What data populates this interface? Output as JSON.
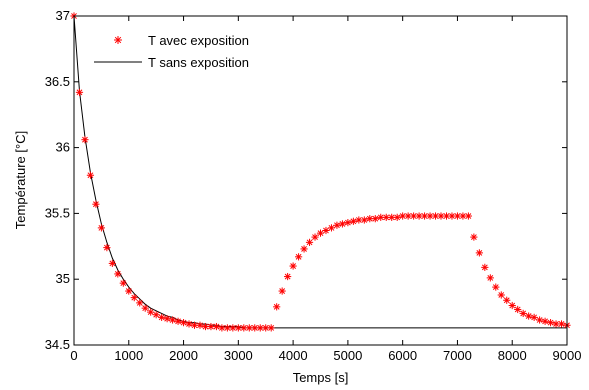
{
  "chart_data": {
    "type": "line",
    "title": "",
    "xlabel": "Temps [s]",
    "ylabel": "Température [°C]",
    "xlim": [
      0,
      9000
    ],
    "ylim": [
      34.5,
      37
    ],
    "xticks": [
      0,
      1000,
      2000,
      3000,
      4000,
      5000,
      6000,
      7000,
      8000,
      9000
    ],
    "yticks": [
      34.5,
      35,
      35.5,
      36,
      36.5,
      37
    ],
    "xtick_labels": [
      "0",
      "1000",
      "2000",
      "3000",
      "4000",
      "5000",
      "6000",
      "7000",
      "8000",
      "9000"
    ],
    "ytick_labels": [
      "34.5",
      "35",
      "35.5",
      "36",
      "36.5",
      "37"
    ],
    "grid": false,
    "legend_position": "top-left",
    "series": [
      {
        "name": "T avec exposition",
        "style": "markers",
        "marker": "asterisk",
        "color": "#ff0000",
        "x": [
          0,
          100,
          200,
          300,
          400,
          500,
          600,
          700,
          800,
          900,
          1000,
          1100,
          1200,
          1300,
          1400,
          1500,
          1600,
          1700,
          1800,
          1900,
          2000,
          2100,
          2200,
          2300,
          2400,
          2500,
          2600,
          2700,
          2800,
          2900,
          3000,
          3100,
          3200,
          3300,
          3400,
          3500,
          3600,
          3700,
          3800,
          3900,
          4000,
          4100,
          4200,
          4300,
          4400,
          4500,
          4600,
          4700,
          4800,
          4900,
          5000,
          5100,
          5200,
          5300,
          5400,
          5500,
          5600,
          5700,
          5800,
          5900,
          6000,
          6100,
          6200,
          6300,
          6400,
          6500,
          6600,
          6700,
          6800,
          6900,
          7000,
          7100,
          7200,
          7300,
          7400,
          7500,
          7600,
          7700,
          7800,
          7900,
          8000,
          8100,
          8200,
          8300,
          8400,
          8500,
          8600,
          8700,
          8800,
          8900,
          9000
        ],
        "y": [
          37.0,
          36.42,
          36.06,
          35.79,
          35.57,
          35.39,
          35.24,
          35.12,
          35.04,
          34.97,
          34.91,
          34.86,
          34.82,
          34.78,
          34.75,
          34.73,
          34.71,
          34.7,
          34.69,
          34.68,
          34.67,
          34.66,
          34.65,
          34.65,
          34.64,
          34.64,
          34.64,
          34.63,
          34.63,
          34.63,
          34.63,
          34.63,
          34.63,
          34.63,
          34.63,
          34.63,
          34.63,
          34.79,
          34.91,
          35.02,
          35.1,
          35.17,
          35.23,
          35.28,
          35.32,
          35.35,
          35.37,
          35.39,
          35.41,
          35.42,
          35.43,
          35.44,
          35.45,
          35.45,
          35.46,
          35.46,
          35.47,
          35.47,
          35.47,
          35.47,
          35.48,
          35.48,
          35.48,
          35.48,
          35.48,
          35.48,
          35.48,
          35.48,
          35.48,
          35.48,
          35.48,
          35.48,
          35.48,
          35.32,
          35.2,
          35.09,
          35.01,
          34.94,
          34.88,
          34.84,
          34.8,
          34.77,
          34.74,
          34.72,
          34.71,
          34.69,
          34.68,
          34.67,
          34.66,
          34.66,
          34.65
        ]
      },
      {
        "name": "T sans exposition",
        "style": "line",
        "color": "#000000",
        "x": [
          0,
          100,
          200,
          300,
          400,
          500,
          600,
          700,
          800,
          900,
          1000,
          1100,
          1200,
          1300,
          1400,
          1500,
          1600,
          1700,
          1800,
          1900,
          2000,
          2100,
          2200,
          2300,
          2400,
          2500,
          2600,
          2700,
          2800,
          2900,
          3000,
          3100,
          3200,
          3300,
          3400,
          3500,
          3600,
          3700,
          4000,
          5000,
          6000,
          7000,
          8000,
          9000
        ],
        "y": [
          37.0,
          36.43,
          36.08,
          35.81,
          35.6,
          35.42,
          35.28,
          35.16,
          35.07,
          35.0,
          34.94,
          34.89,
          34.85,
          34.81,
          34.78,
          34.76,
          34.74,
          34.72,
          34.71,
          34.69,
          34.68,
          34.67,
          34.67,
          34.66,
          34.66,
          34.65,
          34.65,
          34.64,
          34.64,
          34.64,
          34.64,
          34.63,
          34.63,
          34.63,
          34.63,
          34.63,
          34.63,
          34.63,
          34.63,
          34.63,
          34.63,
          34.63,
          34.63,
          34.63
        ]
      }
    ]
  }
}
